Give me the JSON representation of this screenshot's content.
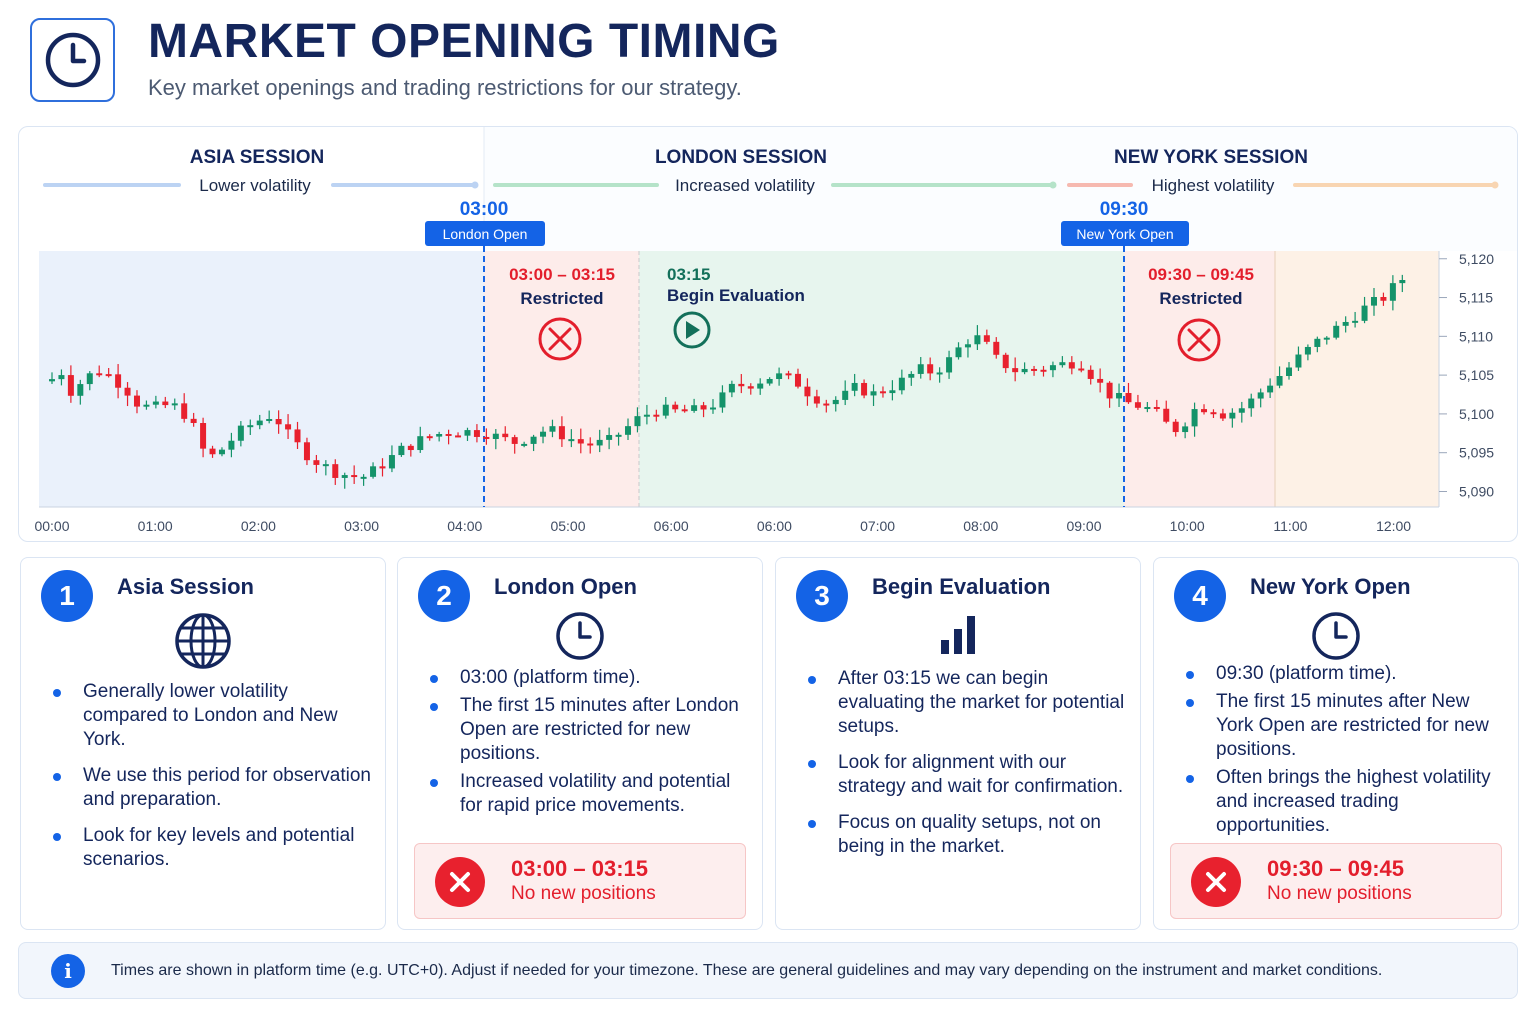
{
  "header": {
    "icon": "clock-icon",
    "title": "MARKET OPENING TIMING",
    "subtitle": "Key market openings and trading restrictions for our strategy."
  },
  "sessions": [
    {
      "name": "ASIA SESSION",
      "note": "Lower volatility",
      "color": "#a9c7f2"
    },
    {
      "name": "LONDON SESSION",
      "note": "Increased volatility",
      "color": "#9ad9b9"
    },
    {
      "name": "NEW YORK SESSION",
      "note": "Highest volatility",
      "color": "#f7b8a8"
    }
  ],
  "markers": [
    {
      "time": "03:00",
      "label": "London Open"
    },
    {
      "time": "09:30",
      "label": "New York Open"
    }
  ],
  "zones": [
    {
      "time": "03:00 – 03:15",
      "label": "Restricted",
      "icon": "x-circle-icon"
    },
    {
      "time": "03:15",
      "label": "Begin Evaluation",
      "icon": "play-circle-icon"
    },
    {
      "time": "09:30 – 09:45",
      "label": "Restricted",
      "icon": "x-circle-icon"
    }
  ],
  "colors": {
    "up": "#14936a",
    "down": "#e8212e",
    "accent": "#1463e6",
    "asia_bg": "#eaf1fb",
    "restricted_bg": "#fdecea",
    "london_bg": "#e7f5ee",
    "ny_bg": "#fdf1e6"
  },
  "chart_data": {
    "type": "candlestick",
    "x_tick_labels": [
      "00:00",
      "01:00",
      "02:00",
      "03:00",
      "04:00",
      "05:00",
      "06:00",
      "06:00",
      "07:00",
      "08:00",
      "09:00",
      "10:00",
      "11:00",
      "12:00"
    ],
    "y_ticks": [
      5090,
      5095,
      5100,
      5105,
      5110,
      5115,
      5120
    ],
    "y_tick_labels": [
      "5,090",
      "5,095",
      "5,100",
      "5,105",
      "5,110",
      "5,115",
      "5,120"
    ],
    "ylim": [
      5088,
      5121
    ],
    "close_path": [
      [
        0,
        5104.5
      ],
      [
        0.1,
        5105.5
      ],
      [
        0.2,
        5102.5
      ],
      [
        0.3,
        5104.5
      ],
      [
        0.45,
        5105.6
      ],
      [
        0.55,
        5105
      ],
      [
        0.7,
        5103.5
      ],
      [
        0.85,
        5101
      ],
      [
        1.0,
        5100.8
      ],
      [
        1.15,
        5101.2
      ],
      [
        1.25,
        5100.5
      ],
      [
        1.35,
        5099
      ],
      [
        1.45,
        5095.5
      ],
      [
        1.55,
        5094.5
      ],
      [
        1.65,
        5095.5
      ],
      [
        1.8,
        5097.5
      ],
      [
        1.95,
        5098.8
      ],
      [
        2.1,
        5099.8
      ],
      [
        2.2,
        5099
      ],
      [
        2.3,
        5097
      ],
      [
        2.45,
        5095
      ],
      [
        2.6,
        5093.5
      ],
      [
        2.75,
        5092.5
      ],
      [
        2.9,
        5092
      ],
      [
        3.0,
        5091.8
      ],
      [
        3.1,
        5092.5
      ],
      [
        3.25,
        5094
      ],
      [
        3.4,
        5095.5
      ],
      [
        3.55,
        5096.5
      ],
      [
        3.7,
        5097.3
      ],
      [
        3.9,
        5097.8
      ],
      [
        4.05,
        5097.7
      ],
      [
        4.2,
        5097.6
      ],
      [
        4.35,
        5096.8
      ],
      [
        4.5,
        5096.3
      ],
      [
        4.65,
        5097.3
      ],
      [
        4.8,
        5098
      ],
      [
        4.95,
        5097.3
      ],
      [
        5.1,
        5096.3
      ],
      [
        5.25,
        5096
      ],
      [
        5.4,
        5096.5
      ],
      [
        5.55,
        5098
      ],
      [
        5.7,
        5099.6
      ],
      [
        5.85,
        5100.5
      ],
      [
        6.05,
        5100.3
      ],
      [
        6.25,
        5100.4
      ],
      [
        6.45,
        5101.5
      ],
      [
        6.6,
        5103.5
      ],
      [
        6.8,
        5104
      ],
      [
        7.0,
        5105
      ],
      [
        7.2,
        5104.3
      ],
      [
        7.35,
        5102.5
      ],
      [
        7.5,
        5101.5
      ],
      [
        7.65,
        5102
      ],
      [
        7.8,
        5103.5
      ],
      [
        7.95,
        5102.5
      ],
      [
        8.1,
        5103.3
      ],
      [
        8.25,
        5104.3
      ],
      [
        8.4,
        5105.7
      ],
      [
        8.55,
        5105.4
      ],
      [
        8.7,
        5107
      ],
      [
        8.85,
        5109.5
      ],
      [
        9.0,
        5109.8
      ],
      [
        9.15,
        5107
      ],
      [
        9.35,
        5105.5
      ],
      [
        9.55,
        5105.8
      ],
      [
        9.75,
        5106.3
      ],
      [
        9.9,
        5106.7
      ],
      [
        10.0,
        5106.4
      ],
      [
        10.1,
        5104.5
      ],
      [
        10.25,
        5102.5
      ],
      [
        10.4,
        5101.5
      ],
      [
        10.55,
        5101
      ],
      [
        10.65,
        5100.5
      ],
      [
        10.75,
        5099.5
      ],
      [
        10.85,
        5097.8
      ],
      [
        10.95,
        5098.5
      ],
      [
        11.05,
        5100.5
      ],
      [
        11.2,
        5101
      ],
      [
        11.35,
        5100
      ],
      [
        11.5,
        5100.5
      ],
      [
        11.65,
        5102
      ],
      [
        11.8,
        5104
      ],
      [
        11.95,
        5105.5
      ],
      [
        12.1,
        5107.5
      ],
      [
        12.3,
        5109.7
      ],
      [
        12.5,
        5111.5
      ],
      [
        12.7,
        5113.5
      ],
      [
        12.9,
        5115
      ],
      [
        13.1,
        5117.6
      ]
    ]
  },
  "cards": [
    {
      "number": "1",
      "title": "Asia Session",
      "icon": "globe-icon",
      "bullets": [
        "Generally lower volatility compared to London and New York.",
        "We use this period for observation and preparation.",
        "Look for key levels and potential scenarios."
      ]
    },
    {
      "number": "2",
      "title": "London Open",
      "icon": "clock-icon",
      "bullets": [
        "03:00 (platform time).",
        "The first 15 minutes after London Open are restricted for new positions.",
        "Increased volatility and potential for rapid price movements."
      ],
      "restriction": {
        "time": "03:00 – 03:15",
        "text": "No new positions"
      }
    },
    {
      "number": "3",
      "title": "Begin Evaluation",
      "icon": "bar-chart-icon",
      "bullets": [
        "After 03:15 we can begin evaluating the market for potential setups.",
        "Look for alignment with our strategy and wait for confirmation.",
        "Focus on quality setups, not on being in the market."
      ]
    },
    {
      "number": "4",
      "title": "New York Open",
      "icon": "clock-icon",
      "bullets": [
        "09:30 (platform time).",
        "The first 15 minutes after New York Open are restricted for new positions.",
        "Often brings the highest volatility and increased trading opportunities."
      ],
      "restriction": {
        "time": "09:30 – 09:45",
        "text": "No new positions"
      }
    }
  ],
  "footer": {
    "icon": "info-icon",
    "icon_glyph": "i",
    "text": "Times are shown in platform time (e.g. UTC+0). Adjust if needed for your timezone. These are general guidelines and may vary depending on the instrument and market conditions."
  }
}
